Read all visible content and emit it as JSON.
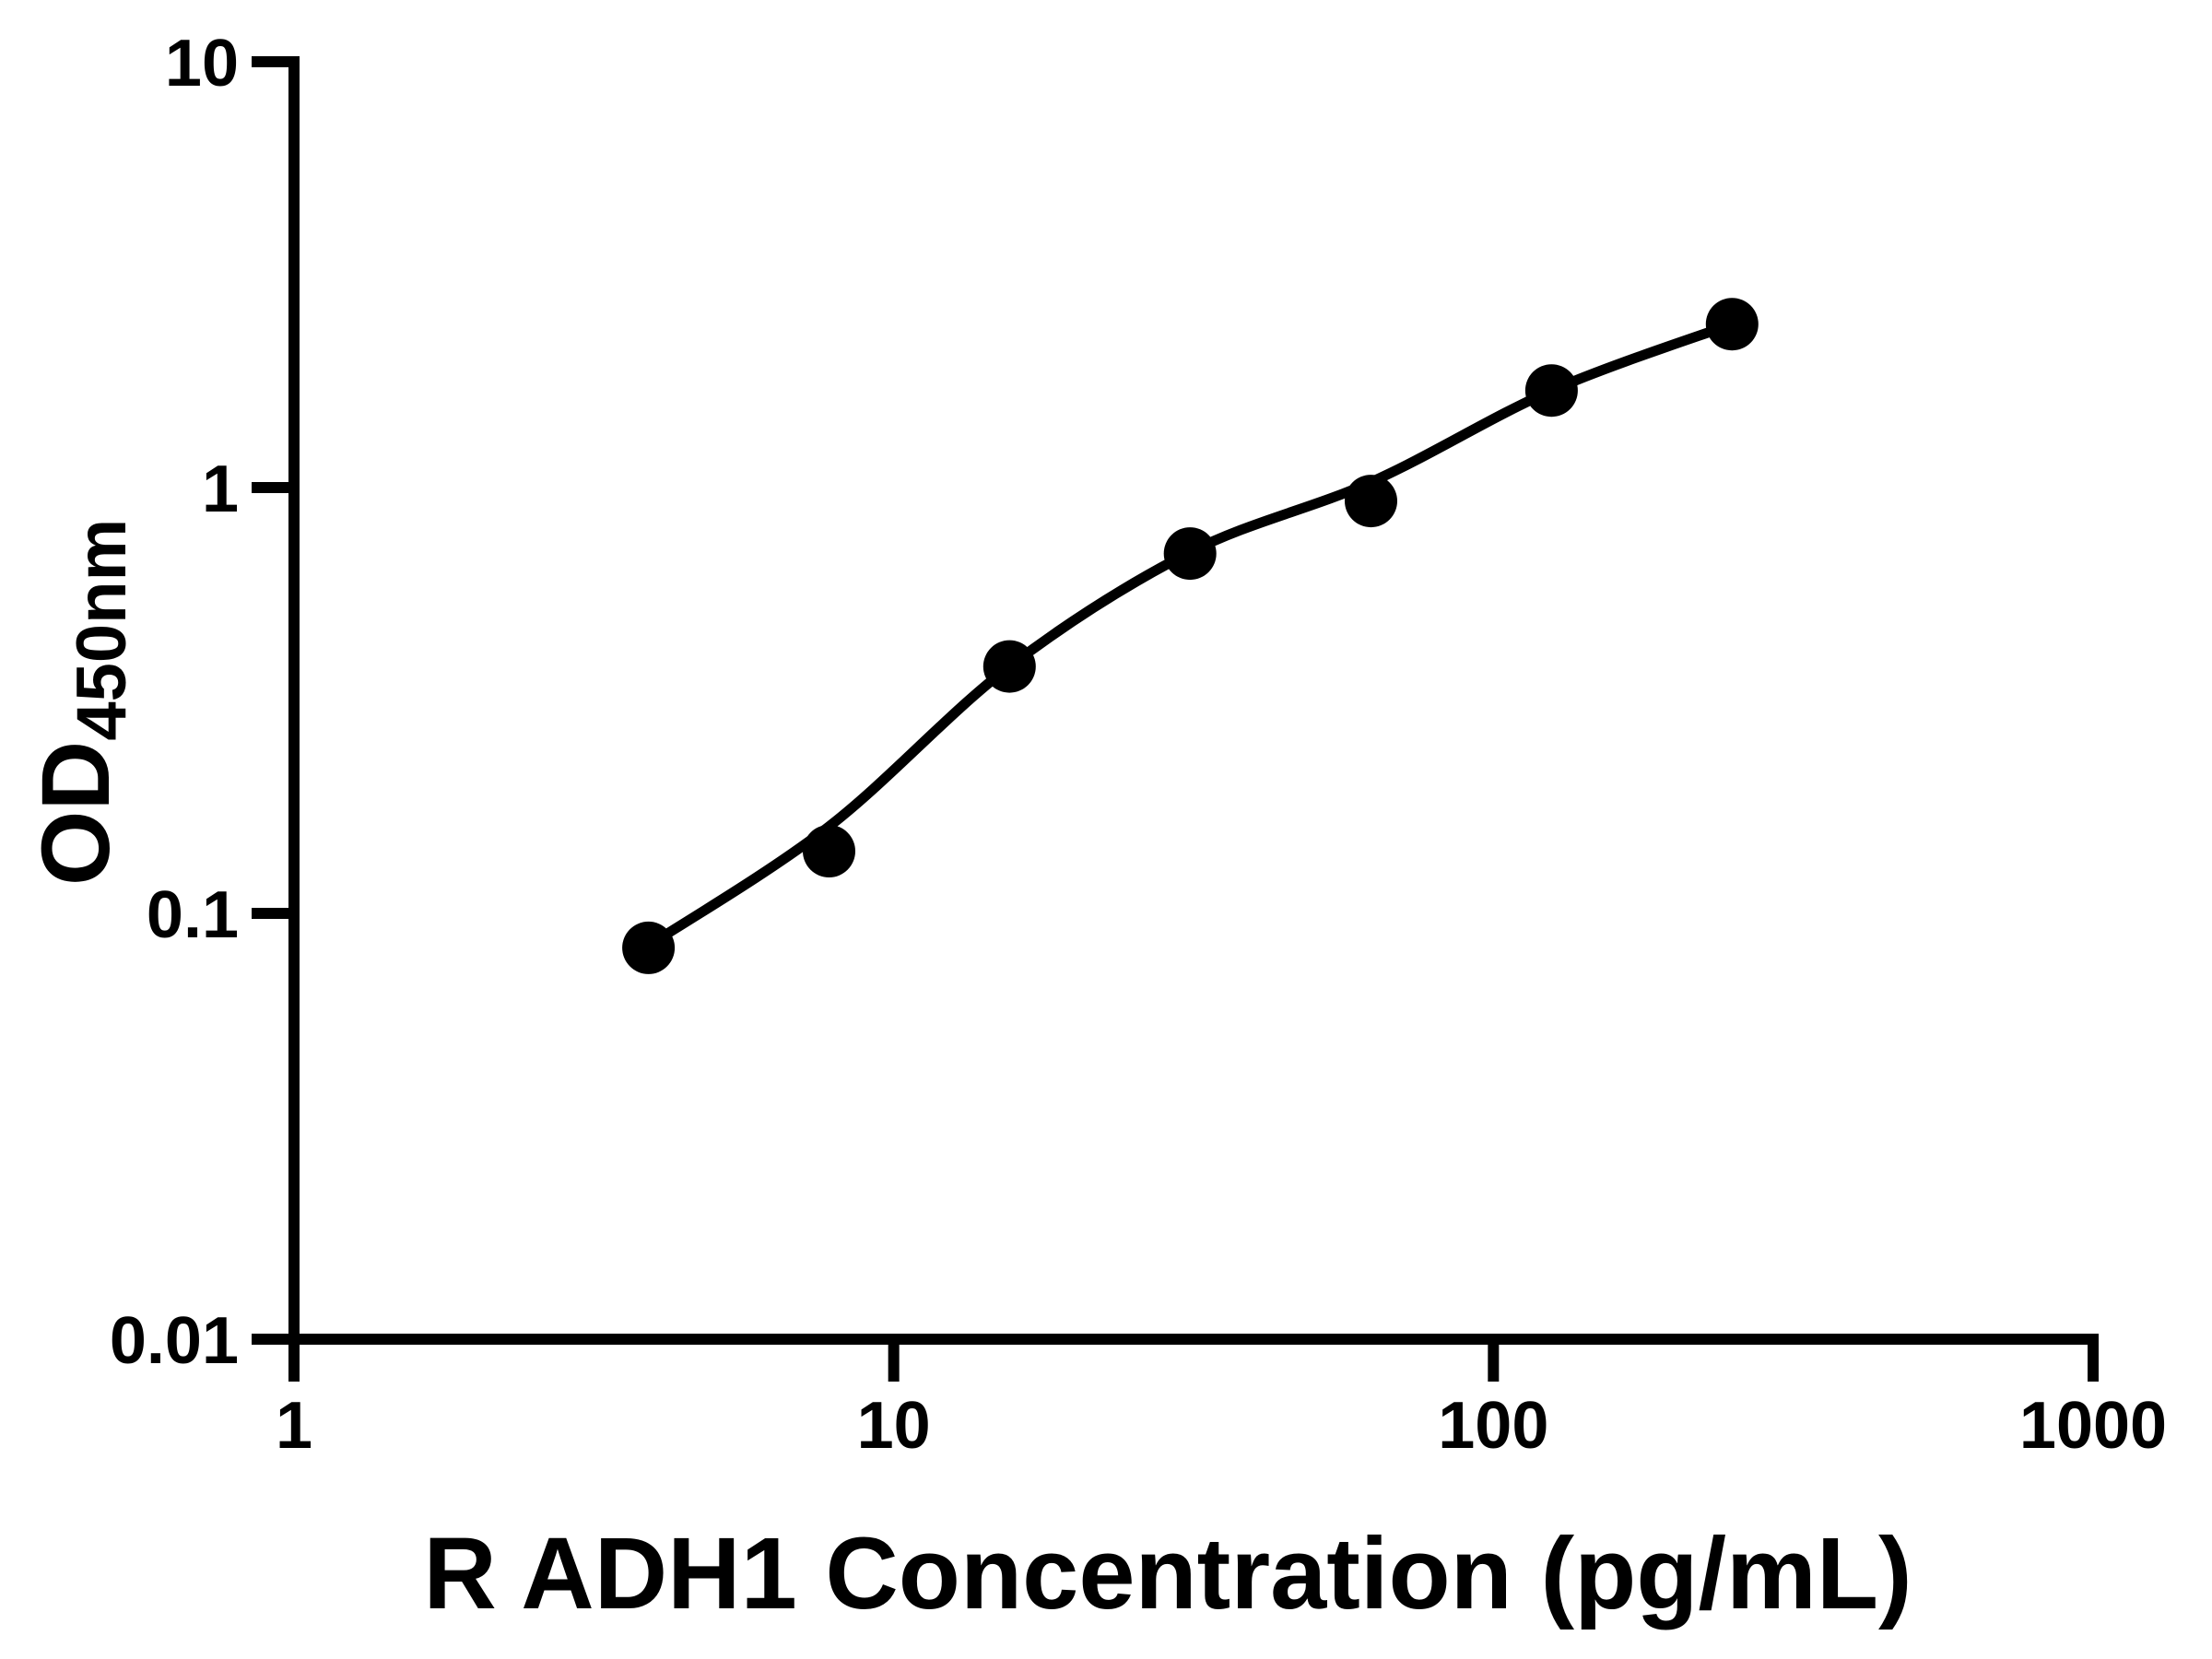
{
  "figure": {
    "background_color": "#ffffff",
    "ink_color": "#000000"
  },
  "chart_data": {
    "type": "scatter",
    "title": "",
    "xlabel": "R ADH1 Concentration (pg/mL)",
    "ylabel_main": "OD",
    "ylabel_subscript": "450nm",
    "x_scale": "log",
    "y_scale": "log",
    "xlim": [
      1,
      1000
    ],
    "ylim": [
      0.01,
      10
    ],
    "grid": false,
    "legend": null,
    "x_ticks": [
      {
        "value": 1,
        "label": "1"
      },
      {
        "value": 10,
        "label": "10"
      },
      {
        "value": 100,
        "label": "100"
      },
      {
        "value": 1000,
        "label": "1000"
      }
    ],
    "y_ticks": [
      {
        "value": 10,
        "label": "10"
      },
      {
        "value": 1,
        "label": "1"
      },
      {
        "value": 0.1,
        "label": "0.1"
      },
      {
        "value": 0.01,
        "label": "0.01"
      }
    ],
    "series": [
      {
        "name": "standard-points",
        "type": "scatter",
        "marker": "filled-circle",
        "x": [
          3.9,
          7.8,
          15.6,
          31.2,
          62.5,
          125,
          250
        ],
        "y": [
          0.083,
          0.14,
          0.38,
          0.7,
          0.93,
          1.69,
          2.42
        ]
      },
      {
        "name": "fitted-curve",
        "type": "line",
        "x": [
          3.9,
          7.8,
          15.6,
          31.2,
          62.5,
          125,
          250
        ],
        "y": [
          0.084,
          0.16,
          0.38,
          0.705,
          1.03,
          1.69,
          2.42
        ]
      }
    ]
  }
}
